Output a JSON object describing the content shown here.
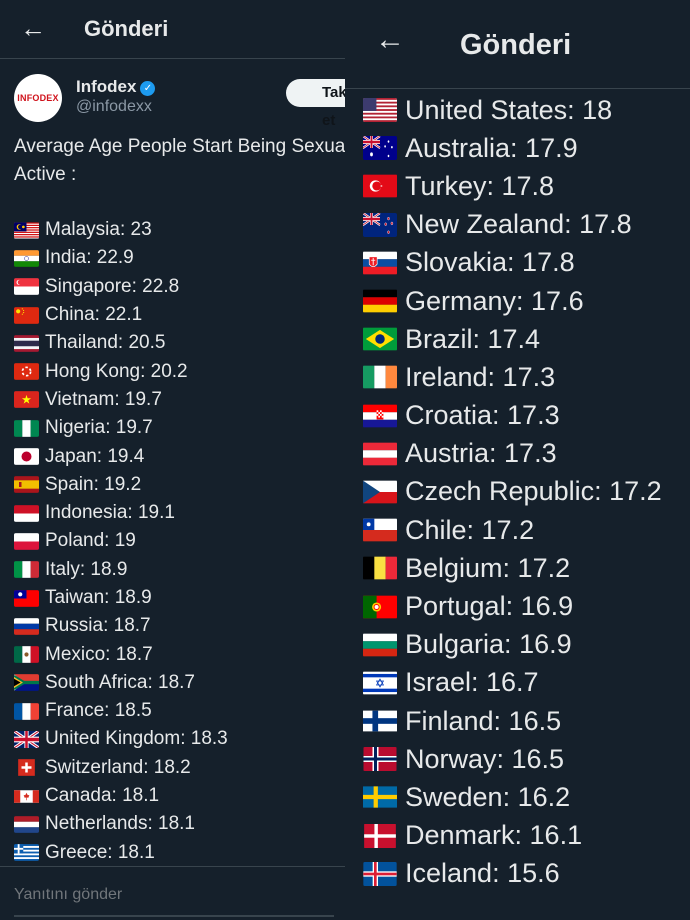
{
  "left": {
    "header_title": "Gönderi",
    "avatar_text": "INFODEX",
    "user_name": "Infodex",
    "user_handle": "@infodexx",
    "follow_label": "Takip et",
    "tweet_line1": "Average Age People Start Being Sexually",
    "tweet_line2": "Active :",
    "reply_placeholder": "Yanıtını gönder",
    "items": [
      {
        "flag": "malaysia",
        "text": "Malaysia: 23"
      },
      {
        "flag": "india",
        "text": "India: 22.9"
      },
      {
        "flag": "singapore",
        "text": "Singapore: 22.8"
      },
      {
        "flag": "china",
        "text": "China: 22.1"
      },
      {
        "flag": "thailand",
        "text": "Thailand: 20.5"
      },
      {
        "flag": "hongkong",
        "text": "Hong Kong: 20.2"
      },
      {
        "flag": "vietnam",
        "text": "Vietnam: 19.7"
      },
      {
        "flag": "nigeria",
        "text": "Nigeria: 19.7"
      },
      {
        "flag": "japan",
        "text": "Japan: 19.4"
      },
      {
        "flag": "spain",
        "text": "Spain: 19.2"
      },
      {
        "flag": "indonesia",
        "text": "Indonesia: 19.1"
      },
      {
        "flag": "poland",
        "text": "Poland: 19"
      },
      {
        "flag": "italy",
        "text": "Italy: 18.9"
      },
      {
        "flag": "taiwan",
        "text": "Taiwan: 18.9"
      },
      {
        "flag": "russia",
        "text": "Russia: 18.7"
      },
      {
        "flag": "mexico",
        "text": "Mexico: 18.7"
      },
      {
        "flag": "southafrica",
        "text": "South Africa: 18.7"
      },
      {
        "flag": "france",
        "text": "France: 18.5"
      },
      {
        "flag": "uk",
        "text": "United Kingdom: 18.3"
      },
      {
        "flag": "switzerland",
        "text": "Switzerland: 18.2"
      },
      {
        "flag": "canada",
        "text": "Canada: 18.1"
      },
      {
        "flag": "netherlands",
        "text": "Netherlands: 18.1"
      },
      {
        "flag": "greece",
        "text": "Greece: 18.1"
      }
    ]
  },
  "right": {
    "header_title": "Gönderi",
    "items": [
      {
        "flag": "usa",
        "text": "United States: 18"
      },
      {
        "flag": "australia",
        "text": "Australia: 17.9"
      },
      {
        "flag": "turkey",
        "text": "Turkey: 17.8"
      },
      {
        "flag": "newzealand",
        "text": "New Zealand: 17.8"
      },
      {
        "flag": "slovakia",
        "text": "Slovakia: 17.8"
      },
      {
        "flag": "germany",
        "text": "Germany: 17.6"
      },
      {
        "flag": "brazil",
        "text": "Brazil: 17.4"
      },
      {
        "flag": "ireland",
        "text": "Ireland: 17.3"
      },
      {
        "flag": "croatia",
        "text": "Croatia: 17.3"
      },
      {
        "flag": "austria",
        "text": "Austria: 17.3"
      },
      {
        "flag": "czech",
        "text": "Czech Republic: 17.2"
      },
      {
        "flag": "chile",
        "text": "Chile: 17.2"
      },
      {
        "flag": "belgium",
        "text": "Belgium: 17.2"
      },
      {
        "flag": "portugal",
        "text": "Portugal: 16.9"
      },
      {
        "flag": "bulgaria",
        "text": "Bulgaria: 16.9"
      },
      {
        "flag": "israel",
        "text": "Israel: 16.7"
      },
      {
        "flag": "finland",
        "text": "Finland: 16.5"
      },
      {
        "flag": "norway",
        "text": "Norway: 16.5"
      },
      {
        "flag": "sweden",
        "text": "Sweden: 16.2"
      },
      {
        "flag": "denmark",
        "text": "Denmark: 16.1"
      },
      {
        "flag": "iceland",
        "text": "Iceland: 15.6"
      }
    ]
  },
  "colors": {
    "background": "#15202b",
    "accent": "#1d9bf0",
    "text": "#e7e9ea",
    "muted": "#8b98a5"
  }
}
